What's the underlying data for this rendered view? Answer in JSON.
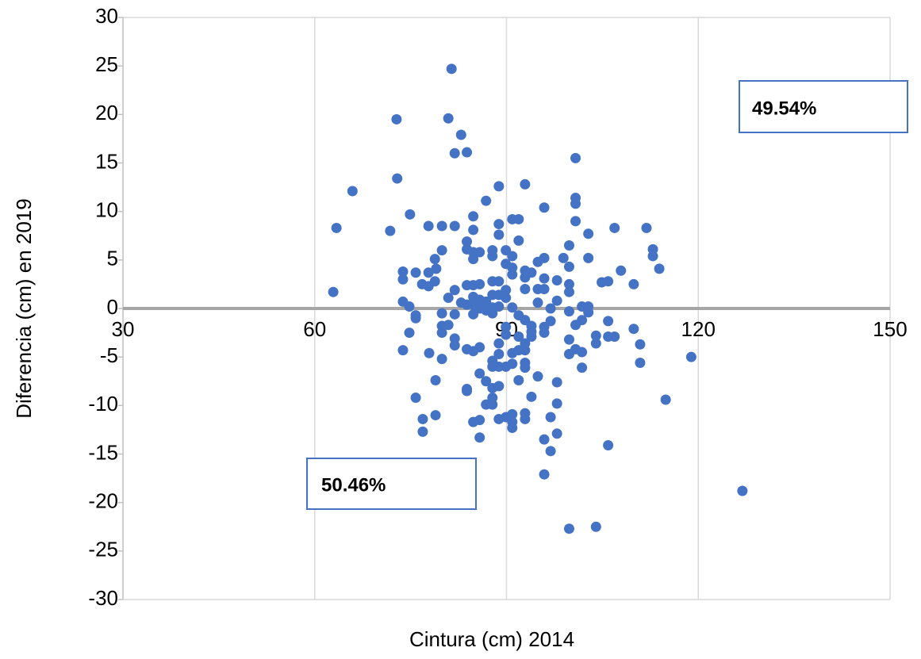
{
  "chart_data": {
    "type": "scatter",
    "x_label": "Cintura (cm) 2014",
    "y_label": "Diferencia (cm) en 2019",
    "color": "#4472c4",
    "xlim": [
      30,
      150
    ],
    "xticks": [
      30,
      60,
      90,
      120,
      150
    ],
    "ylim": [
      -30,
      30
    ],
    "yticks": [
      -30,
      -25,
      -20,
      -15,
      -10,
      -5,
      0,
      5,
      10,
      15,
      20,
      25,
      30
    ],
    "grid": "vertical",
    "annotations": [
      "49.54%",
      "50.46%"
    ],
    "x": [
      62.9,
      63.4,
      65.9,
      71.8,
      72.8,
      72.9,
      74.9,
      73.8,
      73.8,
      73.8,
      74.8,
      75.8,
      75.8,
      74.8,
      73.8,
      75.8,
      76.8,
      77.8,
      77.8,
      78.8,
      78.8,
      79.0,
      77.8,
      79.9,
      79.9,
      81.9,
      81.4,
      80.9,
      82.9,
      81.9,
      83.8,
      88.8,
      92.9,
      86.8,
      84.8,
      88.8,
      90.9,
      91.9,
      95.9,
      100.8,
      100.8,
      100.8,
      100.8,
      102.8,
      106.9,
      111.9,
      112.9,
      112.9,
      113.9,
      107.9,
      109.9,
      105.9,
      104.9,
      102.8,
      99.8,
      98.9,
      99.8,
      99.8,
      99.8,
      97.9,
      97.9,
      101.8,
      102.8,
      102.8,
      101.8,
      100.8,
      99.8,
      105.9,
      109.9,
      110.9,
      106.9,
      105.9,
      104.0,
      104.0,
      99.8,
      99.8,
      100.8,
      101.8,
      101.8,
      110.9,
      118.9,
      114.9,
      126.9,
      105.9,
      104.0,
      99.8,
      95.9,
      96.9,
      95.9,
      97.9,
      96.9,
      97.9,
      97.9,
      94.9,
      93.9,
      92.9,
      92.9,
      90.9,
      90.9,
      90.9,
      89.9,
      88.8,
      87.8,
      86.8,
      87.8,
      88.8,
      87.8,
      86.8,
      85.8,
      83.8,
      83.8,
      85.8,
      84.8,
      85.8,
      91.9,
      91.9,
      92.9,
      90.9,
      90.9,
      92.9,
      92.9,
      89.9,
      88.8,
      87.8,
      87.8,
      88.8,
      88.8,
      85.8,
      84.8,
      83.8,
      81.9,
      81.9,
      80.9,
      79.9,
      79.9,
      79.9,
      79.9,
      78.9,
      78.9,
      76.9,
      76.9,
      75.8,
      77.9,
      80.9,
      81.9,
      83.8,
      84.8,
      85.8,
      84.8,
      85.8,
      86.8,
      82.9,
      83.8,
      84.8,
      85.8,
      86.8,
      87.8,
      88.8,
      87.8,
      84.8,
      81.9,
      83.8,
      83.8,
      84.8,
      84.8,
      85.8,
      87.8,
      87.8,
      89.9,
      90.9,
      89.9,
      90.9,
      91.9,
      88.8,
      84.8,
      90.9,
      92.9,
      93.9,
      92.9,
      94.9,
      95.9,
      95.9,
      94.9,
      95.9,
      92.9,
      87.8,
      88.8,
      87.8,
      88.8,
      89.9,
      89.9,
      94.9,
      90.9,
      91.9,
      92.9,
      93.9,
      93.9,
      95.9,
      96.9,
      96.9,
      95.9,
      93.9,
      92.9,
      91.9,
      89.9,
      89.9
    ],
    "y": [
      1.7,
      8.3,
      12.1,
      8.0,
      19.5,
      13.4,
      9.7,
      3.8,
      3.0,
      0.7,
      0.2,
      -0.7,
      -1.0,
      -2.5,
      -4.3,
      3.7,
      2.5,
      2.3,
      3.7,
      2.8,
      5.1,
      4.1,
      8.5,
      8.5,
      6.0,
      8.5,
      24.7,
      19.6,
      17.9,
      16.0,
      16.1,
      12.6,
      12.8,
      11.1,
      9.5,
      8.7,
      9.2,
      9.2,
      10.4,
      15.5,
      11.4,
      10.8,
      9.0,
      7.7,
      8.3,
      8.3,
      6.1,
      5.4,
      4.1,
      3.9,
      2.5,
      2.8,
      2.7,
      5.2,
      6.5,
      5.2,
      4.3,
      2.5,
      1.7,
      2.9,
      0.8,
      0.2,
      0.2,
      -0.4,
      -1.2,
      -1.7,
      -0.3,
      -1.3,
      -2.1,
      -3.7,
      -2.9,
      -2.9,
      -2.8,
      -3.6,
      -3.2,
      -4.7,
      -4.2,
      -4.5,
      -6.1,
      -5.6,
      -5.0,
      -9.4,
      -18.8,
      -14.1,
      -22.5,
      -22.7,
      -17.1,
      -14.7,
      -13.5,
      -12.9,
      -11.2,
      -9.8,
      -7.6,
      -7.0,
      -9.1,
      -10.8,
      -11.4,
      -10.9,
      -11.7,
      -12.3,
      -11.2,
      -11.4,
      -9.9,
      -9.9,
      -9.2,
      -8.0,
      -8.2,
      -7.5,
      -6.7,
      -8.3,
      -8.5,
      -11.5,
      -11.7,
      -13.3,
      -7.4,
      -4.3,
      -4.3,
      -4.6,
      -5.7,
      -5.6,
      -6.1,
      -6.0,
      -6.0,
      -6.0,
      -5.4,
      -4.7,
      -3.6,
      -4.0,
      -4.4,
      -4.2,
      -3.8,
      -3.1,
      -1.7,
      -2.5,
      -1.8,
      -0.5,
      -5.2,
      -7.4,
      -11.0,
      -11.4,
      -12.7,
      -9.2,
      -4.6,
      1.1,
      1.9,
      2.4,
      2.4,
      2.5,
      1.2,
      0.9,
      0.7,
      0.6,
      0.4,
      0.4,
      0.0,
      -0.2,
      0.1,
      0.2,
      -0.5,
      -0.6,
      -0.6,
      6.1,
      6.9,
      5.8,
      5.1,
      5.8,
      6.0,
      5.4,
      6.0,
      5.4,
      4.6,
      4.2,
      7.0,
      7.6,
      8.1,
      3.5,
      3.9,
      3.7,
      3.2,
      4.8,
      5.2,
      3.1,
      2.0,
      2.0,
      2.0,
      2.8,
      2.8,
      1.4,
      1.4,
      1.9,
      1.1,
      0.6,
      0.1,
      -0.7,
      -1.2,
      -1.8,
      -2.4,
      -1.9,
      0.0,
      -1.3,
      -2.5,
      -2.9,
      -3.6,
      -2.9,
      -2.7,
      -1.9
    ]
  }
}
